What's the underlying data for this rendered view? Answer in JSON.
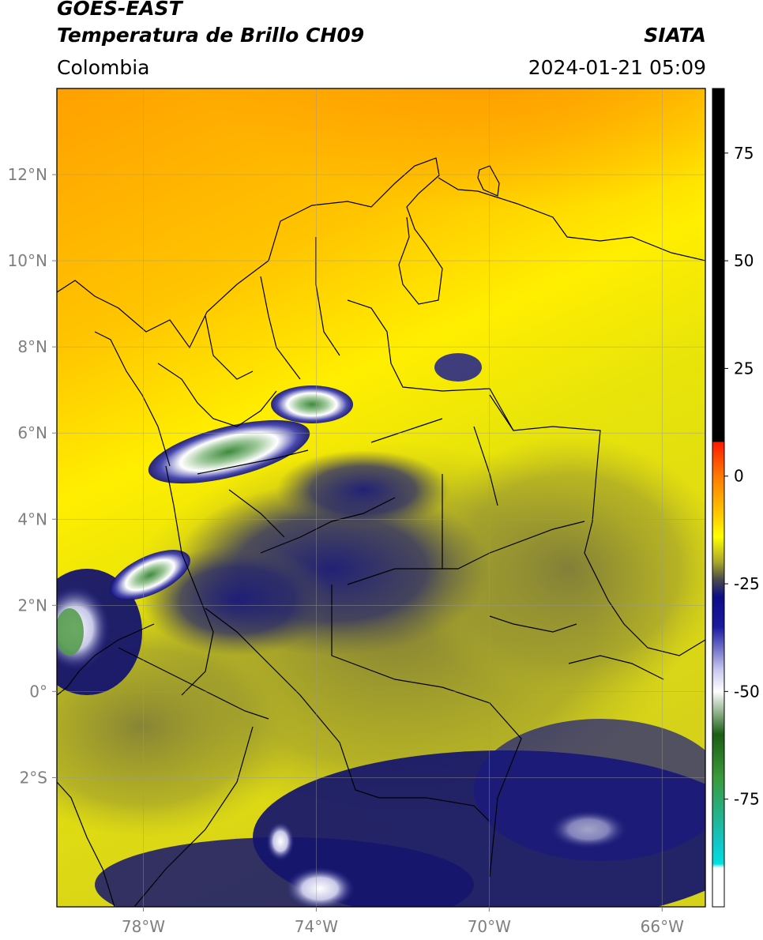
{
  "header": {
    "satellite": "GOES-EAST",
    "product": "Temperatura de Brillo CH09",
    "region": "Colombia",
    "source": "SIATA",
    "datetime": "2024-01-21 05:09"
  },
  "map": {
    "lon_range": [
      -80,
      -65
    ],
    "lat_range": [
      -5,
      14
    ],
    "lon_ticks": [
      {
        "value": -78,
        "label": "78°W"
      },
      {
        "value": -74,
        "label": "74°W"
      },
      {
        "value": -70,
        "label": "70°W"
      },
      {
        "value": -66,
        "label": "66°W"
      }
    ],
    "lat_ticks": [
      {
        "value": 12,
        "label": "12°N"
      },
      {
        "value": 10,
        "label": "10°N"
      },
      {
        "value": 8,
        "label": "8°N"
      },
      {
        "value": 6,
        "label": "6°N"
      },
      {
        "value": 4,
        "label": "4°N"
      },
      {
        "value": 2,
        "label": "2°N"
      },
      {
        "value": 0,
        "label": "0°"
      },
      {
        "value": -2,
        "label": "2°S"
      }
    ],
    "gridlines": true
  },
  "colorbar": {
    "range": [
      -100,
      90
    ],
    "ticks": [
      {
        "value": 75,
        "label": "75"
      },
      {
        "value": 50,
        "label": "50"
      },
      {
        "value": 25,
        "label": "25"
      },
      {
        "value": 0,
        "label": "0"
      },
      {
        "value": -25,
        "label": "-25"
      },
      {
        "value": -50,
        "label": "-50"
      },
      {
        "value": -75,
        "label": "-75"
      }
    ],
    "stops": [
      {
        "value": 90,
        "color": "#000000"
      },
      {
        "value": 8,
        "color": "#000000"
      },
      {
        "value": 7.9,
        "color": "#ff1a00"
      },
      {
        "value": 0,
        "color": "#ff7a00"
      },
      {
        "value": -10,
        "color": "#ffd400"
      },
      {
        "value": -14,
        "color": "#ffff00"
      },
      {
        "value": -20,
        "color": "#a9a72a"
      },
      {
        "value": -24,
        "color": "#4a4a4a"
      },
      {
        "value": -28,
        "color": "#0d0d8a"
      },
      {
        "value": -35,
        "color": "#1a1aa0"
      },
      {
        "value": -45,
        "color": "#c8c8f0"
      },
      {
        "value": -50,
        "color": "#ffffff"
      },
      {
        "value": -60,
        "color": "#1b5e14"
      },
      {
        "value": -70,
        "color": "#3a9a3a"
      },
      {
        "value": -85,
        "color": "#12c6c6"
      },
      {
        "value": -90,
        "color": "#00e0e0"
      },
      {
        "value": -91,
        "color": "#ffffff"
      },
      {
        "value": -100,
        "color": "#ffffff"
      }
    ]
  },
  "palette": {
    "orange": "#ff9500",
    "yellow": "#fffa00",
    "olive": "#a9aa2a",
    "dark_olive": "#6e6c38",
    "navy": "#14146e",
    "white_cloud": "#e8e8f4",
    "green_top": "#4f9a45",
    "outline": "#000000"
  }
}
